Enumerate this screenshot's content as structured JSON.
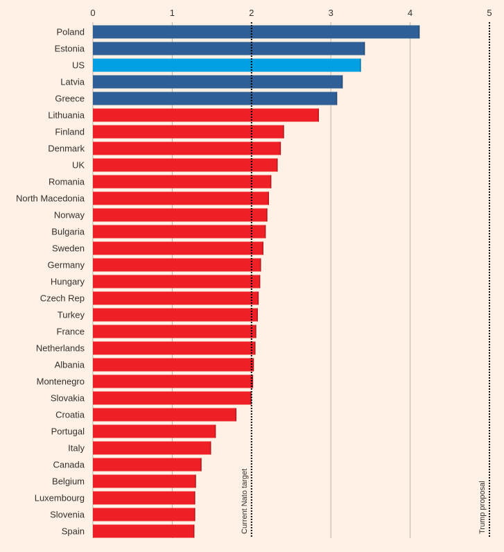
{
  "chart_data": {
    "type": "bar",
    "orientation": "horizontal",
    "xlim": [
      0,
      5
    ],
    "x_ticks": [
      "0",
      "1",
      "2",
      "3",
      "4",
      "5"
    ],
    "categories": [
      "Poland",
      "Estonia",
      "US",
      "Latvia",
      "Greece",
      "Lithuania",
      "Finland",
      "Denmark",
      "UK",
      "Romania",
      "North Macedonia",
      "Norway",
      "Bulgaria",
      "Sweden",
      "Germany",
      "Hungary",
      "Czech Rep",
      "Turkey",
      "France",
      "Netherlands",
      "Albania",
      "Montenegro",
      "Slovakia",
      "Croatia",
      "Portugal",
      "Italy",
      "Canada",
      "Belgium",
      "Luxembourg",
      "Slovenia",
      "Spain"
    ],
    "values": [
      4.12,
      3.43,
      3.38,
      3.15,
      3.08,
      2.85,
      2.41,
      2.37,
      2.33,
      2.25,
      2.22,
      2.2,
      2.18,
      2.15,
      2.12,
      2.11,
      2.09,
      2.08,
      2.06,
      2.05,
      2.03,
      2.02,
      2.0,
      1.81,
      1.55,
      1.49,
      1.37,
      1.3,
      1.29,
      1.29,
      1.28
    ],
    "groups": [
      "above3",
      "above3",
      "us",
      "above3",
      "above3",
      "other",
      "other",
      "other",
      "other",
      "other",
      "other",
      "other",
      "other",
      "other",
      "other",
      "other",
      "other",
      "other",
      "other",
      "other",
      "other",
      "other",
      "other",
      "other",
      "other",
      "other",
      "other",
      "other",
      "other",
      "other",
      "other"
    ],
    "colors": {
      "above3": "#2e6097",
      "us": "#00a0e3",
      "other": "#ee2026",
      "gridline": "#b8b1a8",
      "refline": "#000000",
      "text": "#33302e"
    },
    "reference_lines": [
      {
        "value": 2,
        "label": "Current Nato target"
      },
      {
        "value": 5,
        "label": "Trump proposal"
      }
    ]
  }
}
